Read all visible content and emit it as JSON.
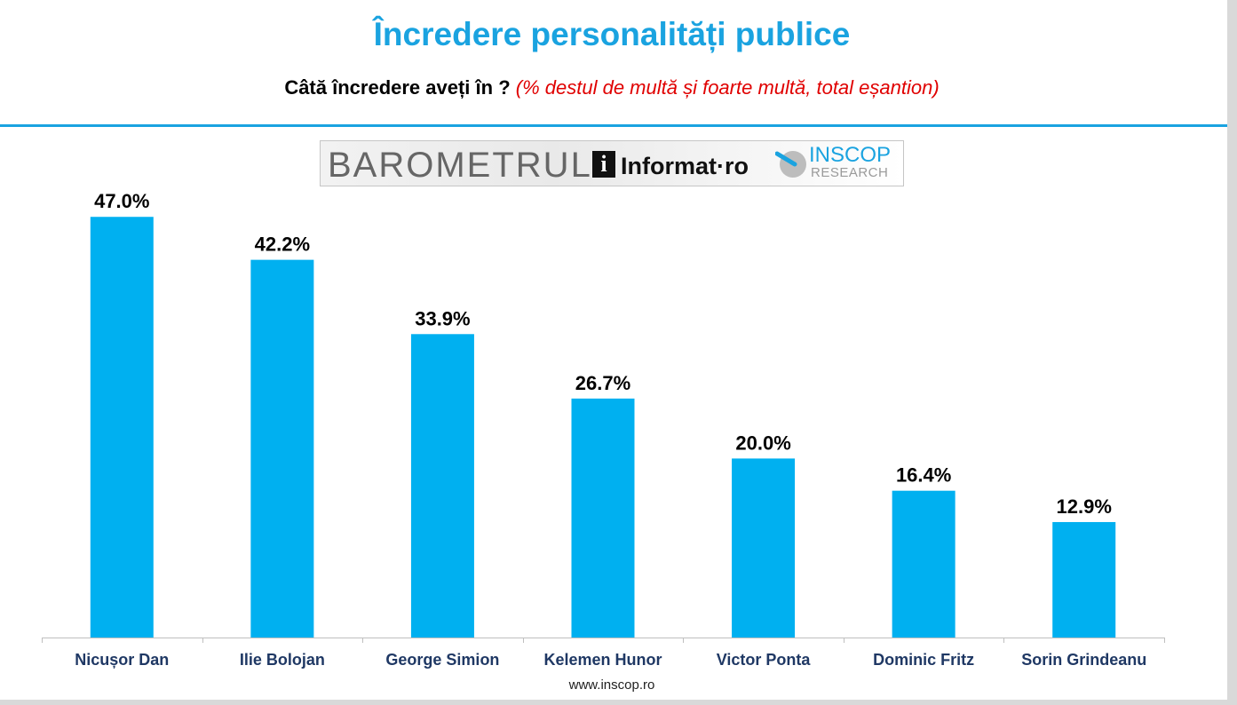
{
  "header": {
    "title": "Încredere personalități publice",
    "question": "Câtă încredere aveți în ?",
    "note": "(% destul de multă și foarte multă,  total eșantion)"
  },
  "logo": {
    "barometrul": "BAROMETRUL",
    "informat_i": "i",
    "informat": "Informat·ro",
    "inscop": "INSCOP",
    "research": "RESEARCH"
  },
  "colors": {
    "bar": "#00b0f0",
    "title": "#1aa3e0",
    "note": "#e00000",
    "category_label": "#1f3864"
  },
  "chart_data": {
    "type": "bar",
    "categories": [
      "Nicușor Dan",
      "Ilie Bolojan",
      "George Simion",
      "Kelemen Hunor",
      "Victor Ponta",
      "Dominic Fritz",
      "Sorin Grindeanu"
    ],
    "values": [
      47.0,
      42.2,
      33.9,
      26.7,
      20.0,
      16.4,
      12.9
    ],
    "value_labels": [
      "47.0%",
      "42.2%",
      "33.9%",
      "26.7%",
      "20.0%",
      "16.4%",
      "12.9%"
    ],
    "ylim": [
      0,
      50
    ],
    "grid": false,
    "legend": "none"
  },
  "footer": {
    "url": "www.inscop.ro"
  }
}
